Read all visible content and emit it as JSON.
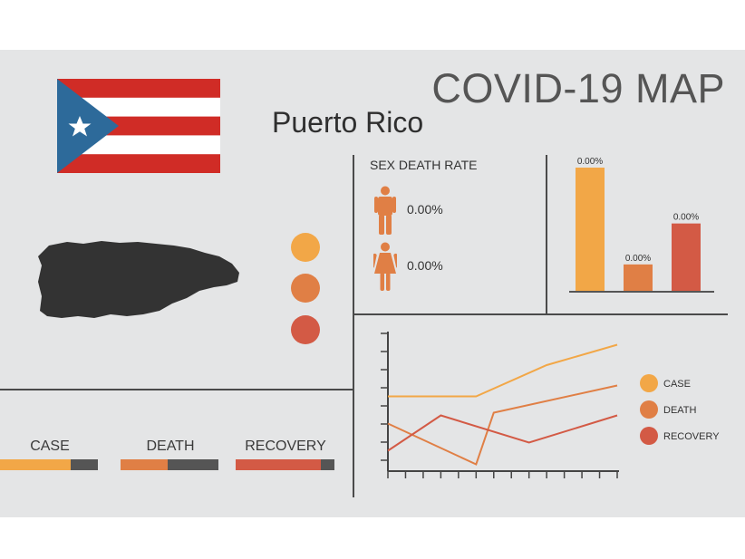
{
  "title": "COVID-19 MAP",
  "country": "Puerto Rico",
  "colors": {
    "case": "#f2a747",
    "death": "#e07f45",
    "recovery": "#d35a45",
    "panel": "#e4e5e6",
    "map": "#333333"
  },
  "icons": {
    "flag": "puerto-rico-flag",
    "map": "puerto-rico-map",
    "male": "male-person-icon",
    "female": "female-person-icon"
  },
  "sex_death_rate": {
    "label": "SEX DEATH RATE",
    "male": "0.00%",
    "female": "0.00%"
  },
  "stats": [
    {
      "label": "CASE",
      "fill": 0.72
    },
    {
      "label": "DEATH",
      "fill": 0.48
    },
    {
      "label": "RECOVERY",
      "fill": 0.86
    }
  ],
  "chart_data": [
    {
      "type": "bar",
      "categories": [
        "CASE",
        "DEATH",
        "RECOVERY"
      ],
      "values": [
        100,
        22,
        55
      ],
      "data_labels": [
        "0.00%",
        "0.00%",
        "0.00%"
      ],
      "title": "",
      "xlabel": "",
      "ylabel": "",
      "ylim": [
        0,
        100
      ]
    },
    {
      "type": "line",
      "x": [
        0,
        1,
        2,
        3,
        4,
        5,
        6,
        7,
        8,
        9,
        10,
        11,
        12,
        13
      ],
      "series": [
        {
          "name": "CASE",
          "values": [
            [
              0,
              55
            ],
            [
              5,
              55
            ],
            [
              9,
              78
            ],
            [
              13,
              93
            ]
          ]
        },
        {
          "name": "DEATH",
          "values": [
            [
              0,
              35
            ],
            [
              5,
              5
            ],
            [
              6,
              43
            ],
            [
              13,
              63
            ]
          ]
        },
        {
          "name": "RECOVERY",
          "values": [
            [
              0,
              15
            ],
            [
              3,
              41
            ],
            [
              8,
              21
            ],
            [
              13,
              41
            ]
          ]
        }
      ],
      "ylim": [
        0,
        100
      ],
      "legend": "right"
    }
  ]
}
